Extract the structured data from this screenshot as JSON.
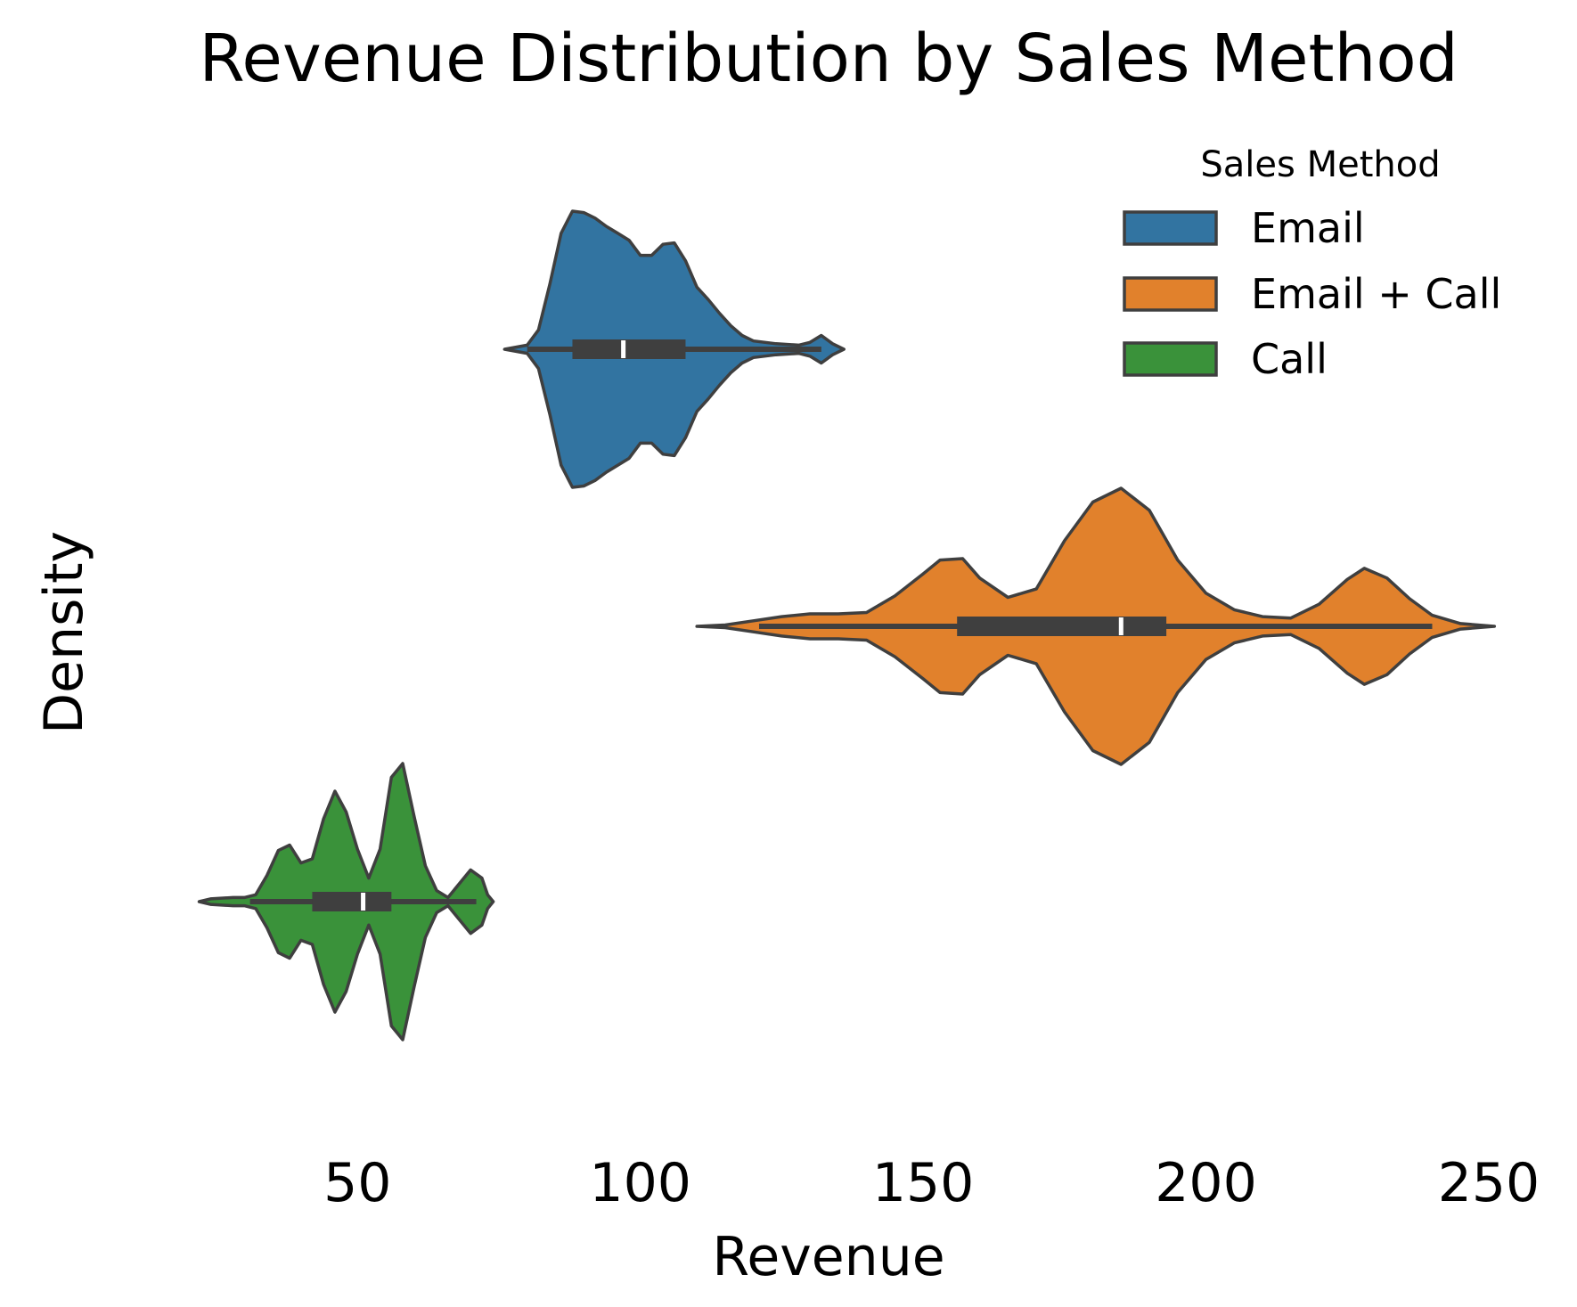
{
  "chart_data": {
    "type": "violin",
    "title": "Revenue Distribution by Sales Method",
    "xlabel": "Revenue",
    "ylabel": "Density",
    "xlim": [
      12,
      253
    ],
    "xticks": [
      50,
      100,
      150,
      200,
      250
    ],
    "grid": false,
    "legend": {
      "title": "Sales Method",
      "placement": "top-right"
    },
    "series": [
      {
        "name": "Email",
        "color": "#3274a1",
        "kde_range": [
          76,
          136
        ],
        "density": [
          [
            76,
            0.0
          ],
          [
            80,
            0.03
          ],
          [
            82,
            0.14
          ],
          [
            84,
            0.47
          ],
          [
            86,
            0.84
          ],
          [
            88,
            1.0
          ],
          [
            90,
            0.99
          ],
          [
            92,
            0.95
          ],
          [
            94,
            0.89
          ],
          [
            96,
            0.84
          ],
          [
            98,
            0.79
          ],
          [
            100,
            0.68
          ],
          [
            102,
            0.68
          ],
          [
            104,
            0.76
          ],
          [
            106,
            0.77
          ],
          [
            108,
            0.64
          ],
          [
            110,
            0.45
          ],
          [
            112,
            0.36
          ],
          [
            114,
            0.26
          ],
          [
            116,
            0.17
          ],
          [
            118,
            0.1
          ],
          [
            120,
            0.06
          ],
          [
            124,
            0.04
          ],
          [
            128,
            0.03
          ],
          [
            130,
            0.05
          ],
          [
            132,
            0.1
          ],
          [
            134,
            0.04
          ],
          [
            136,
            0.0
          ]
        ],
        "whisker": [
          80,
          132
        ],
        "q1": 88,
        "q3": 108,
        "median": 97
      },
      {
        "name": "Email + Call",
        "color": "#e1812c",
        "kde_range": [
          110,
          251
        ],
        "density": [
          [
            110,
            0.0
          ],
          [
            115,
            0.01
          ],
          [
            120,
            0.04
          ],
          [
            125,
            0.07
          ],
          [
            130,
            0.09
          ],
          [
            135,
            0.09
          ],
          [
            140,
            0.1
          ],
          [
            145,
            0.22
          ],
          [
            150,
            0.38
          ],
          [
            153,
            0.48
          ],
          [
            157,
            0.49
          ],
          [
            160,
            0.35
          ],
          [
            165,
            0.21
          ],
          [
            170,
            0.27
          ],
          [
            175,
            0.62
          ],
          [
            180,
            0.9
          ],
          [
            185,
            1.0
          ],
          [
            190,
            0.84
          ],
          [
            195,
            0.48
          ],
          [
            200,
            0.24
          ],
          [
            205,
            0.12
          ],
          [
            210,
            0.07
          ],
          [
            215,
            0.06
          ],
          [
            220,
            0.16
          ],
          [
            225,
            0.34
          ],
          [
            228,
            0.42
          ],
          [
            232,
            0.35
          ],
          [
            236,
            0.2
          ],
          [
            240,
            0.08
          ],
          [
            245,
            0.02
          ],
          [
            251,
            0.0
          ]
        ],
        "whisker": [
          121,
          240
        ],
        "q1": 156,
        "q3": 193,
        "median": 185
      },
      {
        "name": "Call",
        "color": "#3a923a",
        "kde_range": [
          22,
          74
        ],
        "density": [
          [
            22,
            0.0
          ],
          [
            24,
            0.02
          ],
          [
            28,
            0.03
          ],
          [
            30,
            0.03
          ],
          [
            32,
            0.05
          ],
          [
            34,
            0.19
          ],
          [
            36,
            0.37
          ],
          [
            38,
            0.41
          ],
          [
            40,
            0.28
          ],
          [
            42,
            0.31
          ],
          [
            44,
            0.6
          ],
          [
            46,
            0.8
          ],
          [
            48,
            0.65
          ],
          [
            50,
            0.38
          ],
          [
            52,
            0.17
          ],
          [
            54,
            0.38
          ],
          [
            56,
            0.9
          ],
          [
            58,
            1.0
          ],
          [
            60,
            0.62
          ],
          [
            62,
            0.26
          ],
          [
            64,
            0.08
          ],
          [
            66,
            0.03
          ],
          [
            68,
            0.13
          ],
          [
            70,
            0.23
          ],
          [
            72,
            0.17
          ],
          [
            73,
            0.05
          ],
          [
            74,
            0.0
          ]
        ],
        "whisker": [
          31,
          71
        ],
        "q1": 42,
        "q3": 56,
        "median": 51
      }
    ]
  }
}
